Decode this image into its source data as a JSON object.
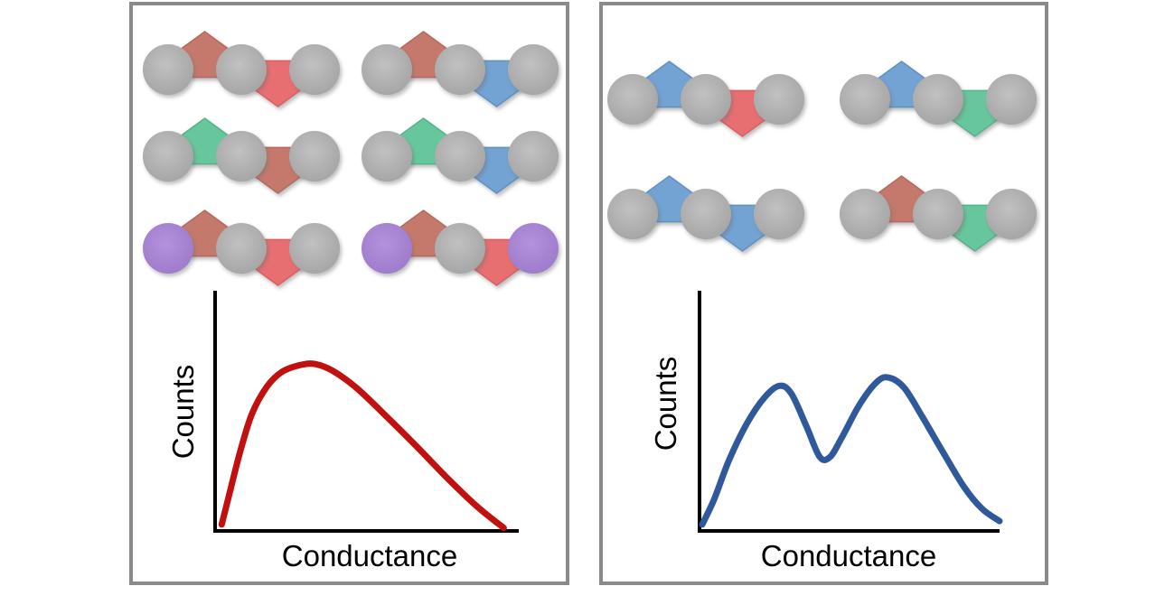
{
  "figure": {
    "description": "Two-panel schematic comparing molecular junction compositions and their conductance histograms",
    "background": "#ffffff",
    "panel_border_color": "#8a8a8a",
    "palette": {
      "circle_gray_center": "#c2c1c1",
      "circle_gray_edge": "#a5a4a4",
      "circle_purple_center": "#b592dc",
      "circle_purple_edge": "#9d7acb",
      "pentagon_muted_red": "#c5796d",
      "pentagon_muted_red_edge": "#b26a5f",
      "pentagon_bright_red": "#e86f71",
      "pentagon_bright_red_edge": "#d95f64",
      "pentagon_green": "#68c69d",
      "pentagon_green_edge": "#55b38b",
      "pentagon_blue": "#73a3d3",
      "pentagon_blue_edge": "#6090c1",
      "axis_color": "#000000"
    },
    "panels": [
      {
        "name": "left",
        "chains": [
          {
            "row": 0,
            "col": 0,
            "units": [
              {
                "shape": "circle",
                "color": "gray"
              },
              {
                "shape": "pentagon-up",
                "color": "muted_red"
              },
              {
                "shape": "circle",
                "color": "gray"
              },
              {
                "shape": "pentagon-down",
                "color": "bright_red"
              },
              {
                "shape": "circle",
                "color": "gray"
              }
            ]
          },
          {
            "row": 0,
            "col": 1,
            "units": [
              {
                "shape": "circle",
                "color": "gray"
              },
              {
                "shape": "pentagon-up",
                "color": "muted_red"
              },
              {
                "shape": "circle",
                "color": "gray"
              },
              {
                "shape": "pentagon-down",
                "color": "blue"
              },
              {
                "shape": "circle",
                "color": "gray"
              }
            ]
          },
          {
            "row": 1,
            "col": 0,
            "units": [
              {
                "shape": "circle",
                "color": "gray"
              },
              {
                "shape": "pentagon-up",
                "color": "green"
              },
              {
                "shape": "circle",
                "color": "gray"
              },
              {
                "shape": "pentagon-down",
                "color": "muted_red"
              },
              {
                "shape": "circle",
                "color": "gray"
              }
            ]
          },
          {
            "row": 1,
            "col": 1,
            "units": [
              {
                "shape": "circle",
                "color": "gray"
              },
              {
                "shape": "pentagon-up",
                "color": "green"
              },
              {
                "shape": "circle",
                "color": "gray"
              },
              {
                "shape": "pentagon-down",
                "color": "blue"
              },
              {
                "shape": "circle",
                "color": "gray"
              }
            ]
          },
          {
            "row": 2,
            "col": 0,
            "units": [
              {
                "shape": "circle",
                "color": "purple"
              },
              {
                "shape": "pentagon-up",
                "color": "muted_red"
              },
              {
                "shape": "circle",
                "color": "gray"
              },
              {
                "shape": "pentagon-down",
                "color": "bright_red"
              },
              {
                "shape": "circle",
                "color": "gray"
              }
            ]
          },
          {
            "row": 2,
            "col": 1,
            "units": [
              {
                "shape": "circle",
                "color": "purple"
              },
              {
                "shape": "pentagon-up",
                "color": "muted_red"
              },
              {
                "shape": "circle",
                "color": "gray"
              },
              {
                "shape": "pentagon-down",
                "color": "bright_red"
              },
              {
                "shape": "circle",
                "color": "purple"
              }
            ]
          }
        ]
      },
      {
        "name": "right",
        "chains": [
          {
            "row": 0,
            "col": 0,
            "units": [
              {
                "shape": "circle",
                "color": "gray"
              },
              {
                "shape": "pentagon-up",
                "color": "blue"
              },
              {
                "shape": "circle",
                "color": "gray"
              },
              {
                "shape": "pentagon-down",
                "color": "bright_red"
              },
              {
                "shape": "circle",
                "color": "gray"
              }
            ]
          },
          {
            "row": 0,
            "col": 1,
            "units": [
              {
                "shape": "circle",
                "color": "gray"
              },
              {
                "shape": "pentagon-up",
                "color": "blue"
              },
              {
                "shape": "circle",
                "color": "gray"
              },
              {
                "shape": "pentagon-down",
                "color": "green"
              },
              {
                "shape": "circle",
                "color": "gray"
              }
            ]
          },
          {
            "row": 1,
            "col": 0,
            "units": [
              {
                "shape": "circle",
                "color": "gray"
              },
              {
                "shape": "pentagon-up",
                "color": "blue"
              },
              {
                "shape": "circle",
                "color": "gray"
              },
              {
                "shape": "pentagon-down",
                "color": "blue"
              },
              {
                "shape": "circle",
                "color": "gray"
              }
            ]
          },
          {
            "row": 1,
            "col": 1,
            "units": [
              {
                "shape": "circle",
                "color": "gray"
              },
              {
                "shape": "pentagon-up",
                "color": "muted_red"
              },
              {
                "shape": "circle",
                "color": "gray"
              },
              {
                "shape": "pentagon-down",
                "color": "green"
              },
              {
                "shape": "circle",
                "color": "gray"
              }
            ]
          }
        ]
      }
    ]
  },
  "chart_data": [
    {
      "type": "line",
      "panel": "left",
      "title": "",
      "xlabel": "Conductance",
      "ylabel": "Counts",
      "units": "arbitrary (schematic, no tick labels shown)",
      "x_range": [
        0,
        1
      ],
      "y_range": [
        0,
        1
      ],
      "x_ticks": [],
      "y_ticks": [],
      "grid": false,
      "legend": "none",
      "series": [
        {
          "name": "conductance histogram, single broad peak",
          "color": "#c01010",
          "line_width": 7,
          "points": [
            [
              0.01,
              0.02
            ],
            [
              0.035,
              0.15
            ],
            [
              0.07,
              0.33
            ],
            [
              0.11,
              0.5
            ],
            [
              0.16,
              0.62
            ],
            [
              0.21,
              0.685
            ],
            [
              0.27,
              0.715
            ],
            [
              0.32,
              0.72
            ],
            [
              0.38,
              0.69
            ],
            [
              0.46,
              0.615
            ],
            [
              0.56,
              0.49
            ],
            [
              0.66,
              0.36
            ],
            [
              0.76,
              0.225
            ],
            [
              0.86,
              0.1
            ],
            [
              0.95,
              0.005
            ]
          ]
        }
      ]
    },
    {
      "type": "line",
      "panel": "right",
      "title": "",
      "xlabel": "Conductance",
      "ylabel": "Counts",
      "units": "arbitrary (schematic, no tick labels shown)",
      "x_range": [
        0,
        1
      ],
      "y_range": [
        0,
        1
      ],
      "x_ticks": [],
      "y_ticks": [],
      "grid": false,
      "legend": "none",
      "series": [
        {
          "name": "conductance histogram, bimodal (two peaks)",
          "color": "#30599c",
          "line_width": 7,
          "points": [
            [
              0.0,
              0.02
            ],
            [
              0.04,
              0.13
            ],
            [
              0.09,
              0.3
            ],
            [
              0.15,
              0.46
            ],
            [
              0.21,
              0.575
            ],
            [
              0.26,
              0.625
            ],
            [
              0.3,
              0.59
            ],
            [
              0.35,
              0.45
            ],
            [
              0.395,
              0.315
            ],
            [
              0.43,
              0.315
            ],
            [
              0.47,
              0.4
            ],
            [
              0.53,
              0.545
            ],
            [
              0.59,
              0.645
            ],
            [
              0.63,
              0.66
            ],
            [
              0.68,
              0.615
            ],
            [
              0.74,
              0.49
            ],
            [
              0.81,
              0.335
            ],
            [
              0.88,
              0.185
            ],
            [
              0.94,
              0.09
            ],
            [
              1.0,
              0.035
            ]
          ]
        }
      ]
    }
  ]
}
